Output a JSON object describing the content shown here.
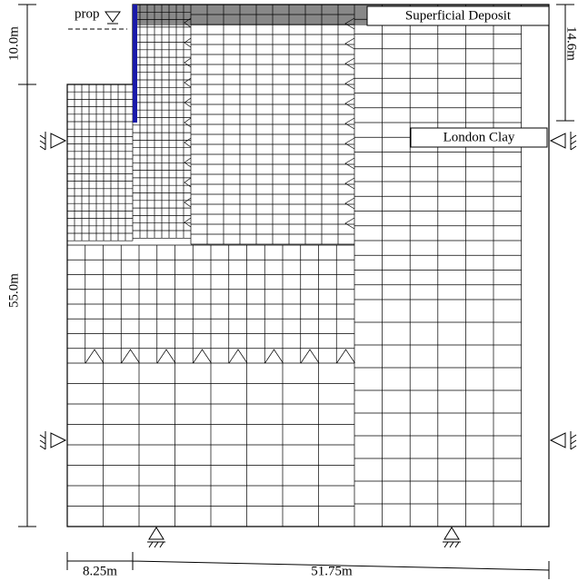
{
  "labels": {
    "prop": "prop",
    "superficial": "Superficial Deposit",
    "london_clay": "London Clay"
  },
  "dimensions": {
    "top": "10.0m",
    "right": "14.6m",
    "left": "55.0m",
    "bottom_left": "8.25m",
    "bottom_right": "51.75m"
  }
}
